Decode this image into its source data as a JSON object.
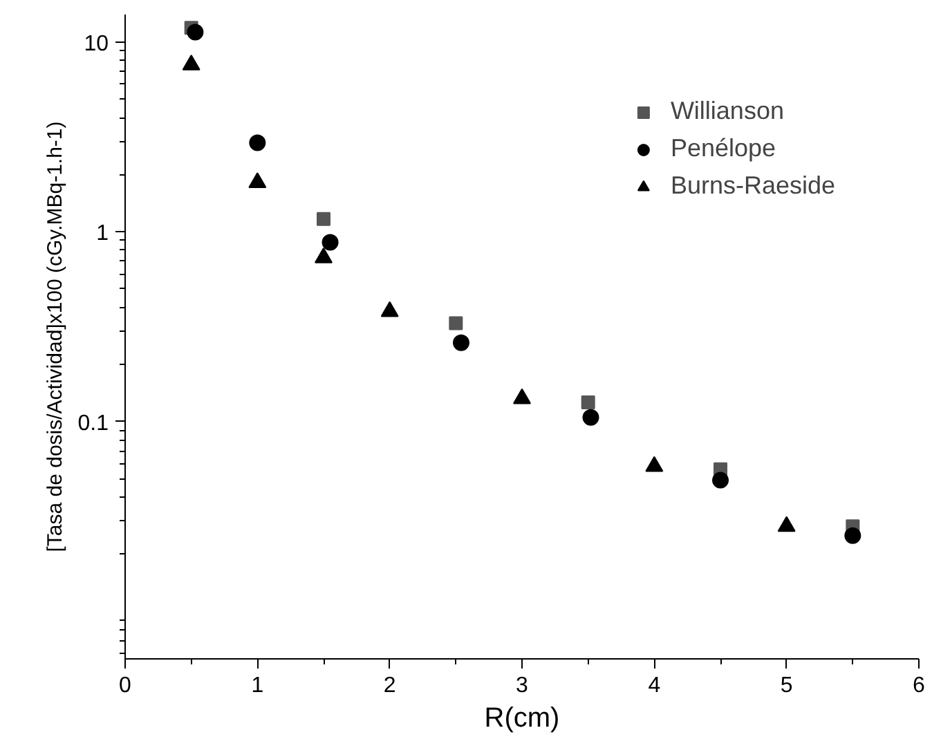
{
  "chart_data": {
    "type": "scatter",
    "xlabel": "R(cm)",
    "ylabel": "[Tasa de dosis/Actividad]x100 (cGy.MBq-1.h-1)",
    "log": "y",
    "xlim": [
      0,
      6
    ],
    "xticks": [
      0,
      1,
      2,
      3,
      4,
      5,
      6
    ],
    "ylim": [
      0.0056,
      14
    ],
    "yticks": [
      0.1,
      1,
      10
    ],
    "grid": false,
    "legend": "top right",
    "series": [
      {
        "name": "Willianson",
        "color": "#555555",
        "marker": "square",
        "x": [
          0.5,
          1.0,
          1.5,
          2.5,
          3.5,
          4.5,
          5.5
        ],
        "values": [
          11.9,
          null,
          1.17,
          0.33,
          0.126,
          0.056,
          0.028
        ]
      },
      {
        "name": "Penélope",
        "color": "#000000",
        "marker": "circle",
        "x": [
          0.53,
          1.0,
          1.55,
          2.54,
          3.52,
          4.5,
          5.5
        ],
        "values": [
          11.3,
          2.95,
          0.88,
          0.26,
          0.105,
          0.049,
          0.025
        ]
      },
      {
        "name": "Burns-Raeside",
        "color": "#000000",
        "marker": "triangle",
        "x": [
          0.5,
          1.0,
          1.5,
          2.0,
          3.0,
          4.0,
          5.0
        ],
        "values": [
          7.6,
          1.82,
          0.73,
          0.38,
          0.132,
          0.058,
          0.028
        ]
      }
    ]
  }
}
